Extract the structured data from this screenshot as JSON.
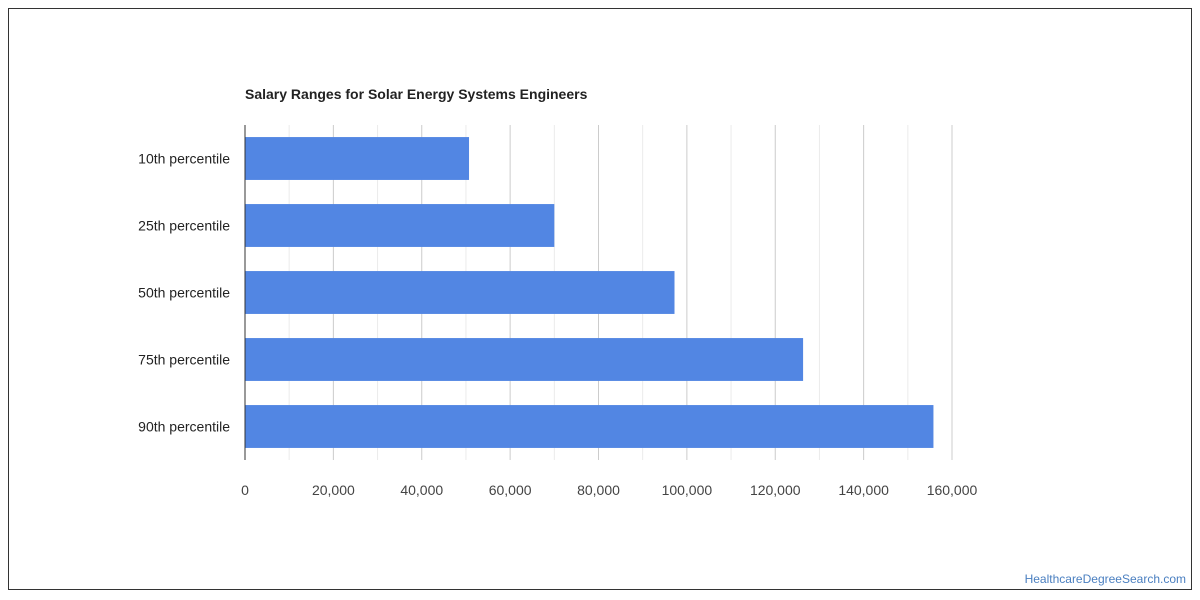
{
  "chart_data": {
    "type": "bar",
    "orientation": "horizontal",
    "title": "Salary Ranges for Solar Energy Systems Engineers",
    "categories": [
      "10th percentile",
      "25th percentile",
      "50th percentile",
      "75th percentile",
      "90th percentile"
    ],
    "values": [
      50700,
      70000,
      97200,
      126300,
      155800
    ],
    "xlim": [
      0,
      160000
    ],
    "x_ticks": [
      0,
      20000,
      40000,
      60000,
      80000,
      100000,
      120000,
      140000,
      160000
    ],
    "x_tick_labels": [
      "0",
      "20,000",
      "40,000",
      "60,000",
      "80,000",
      "100,000",
      "120,000",
      "140,000",
      "160,000"
    ],
    "xlabel": "",
    "ylabel": "",
    "bar_color": "#5286e3",
    "grid": true,
    "legend": "none"
  },
  "watermark": "HealthcareDegreeSearch.com"
}
